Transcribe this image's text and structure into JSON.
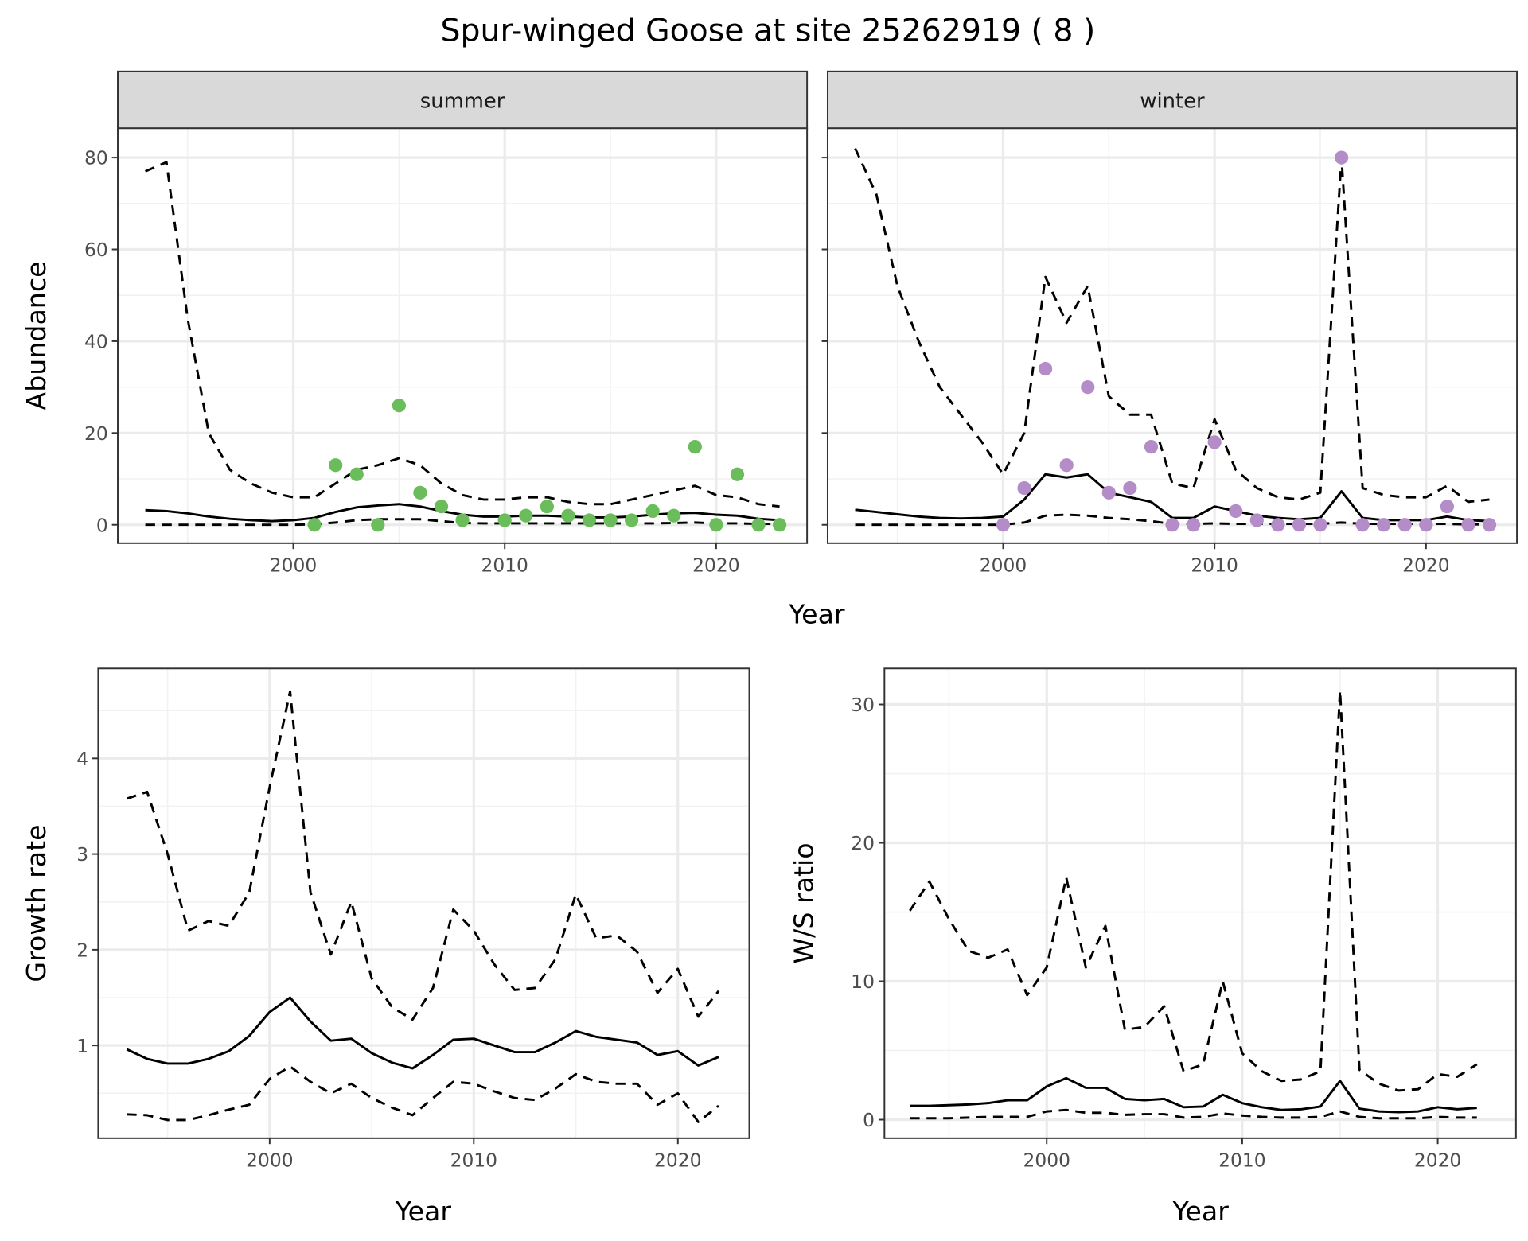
{
  "title": "Spur-winged Goose at site 25262919 ( 8 )",
  "top_xlabel": "Year",
  "chart_data": [
    {
      "id": "summer",
      "type": "line",
      "facet_label": "summer",
      "ylabel": "Abundance",
      "xlabel": "",
      "xlim": [
        1991.7,
        2024.3
      ],
      "ylim": [
        -4,
        86.4
      ],
      "xticks": [
        2000,
        2010,
        2020
      ],
      "xminor": [
        1995,
        2005,
        2015
      ],
      "yticks": [
        0,
        20,
        40,
        60,
        80
      ],
      "yminor": [
        10,
        30,
        50,
        70
      ],
      "show_ytick_labels": true,
      "grid": true,
      "x": [
        1993,
        1994,
        1995,
        1996,
        1997,
        1998,
        1999,
        2000,
        2001,
        2002,
        2003,
        2004,
        2005,
        2006,
        2007,
        2008,
        2009,
        2010,
        2011,
        2012,
        2013,
        2014,
        2015,
        2016,
        2017,
        2018,
        2019,
        2020,
        2021,
        2022,
        2023
      ],
      "series": [
        {
          "style": "dashed",
          "values": [
            77,
            79,
            45,
            20,
            12,
            9,
            7,
            6,
            6,
            9,
            12,
            13,
            14.5,
            13,
            9,
            6.5,
            5.5,
            5.5,
            6,
            6,
            5,
            4.5,
            4.5,
            5.5,
            6.5,
            7.5,
            8.5,
            6.5,
            6,
            4.5,
            4
          ]
        },
        {
          "style": "solid",
          "values": [
            3.2,
            3,
            2.5,
            1.8,
            1.3,
            1,
            0.8,
            1,
            1.5,
            2.8,
            3.8,
            4.2,
            4.5,
            4,
            3,
            2.2,
            1.8,
            1.8,
            2,
            2,
            1.8,
            1.6,
            1.6,
            1.8,
            2.2,
            2.5,
            2.6,
            2.2,
            2,
            1.3,
            1
          ]
        },
        {
          "style": "dashed",
          "values": [
            0,
            0,
            0,
            0,
            0,
            0,
            0,
            0,
            0.1,
            0.5,
            1,
            1.2,
            1.2,
            1.2,
            0.8,
            0.4,
            0.3,
            0.3,
            0.3,
            0.3,
            0.3,
            0.3,
            0.3,
            0.3,
            0.3,
            0.4,
            0.5,
            0.3,
            0.3,
            0.2,
            0.2
          ]
        }
      ],
      "points": {
        "color": "#6abd5a",
        "x": [
          2001,
          2002,
          2003,
          2004,
          2005,
          2006,
          2007,
          2008,
          2010,
          2011,
          2012,
          2013,
          2014,
          2015,
          2016,
          2017,
          2018,
          2019,
          2020,
          2021,
          2022,
          2023
        ],
        "y": [
          0,
          13,
          11,
          0,
          26,
          7,
          4,
          1,
          1,
          2,
          4,
          2,
          1,
          1,
          1,
          3,
          2,
          17,
          0,
          11,
          0,
          0
        ]
      }
    },
    {
      "id": "winter",
      "type": "line",
      "facet_label": "winter",
      "ylabel": "",
      "xlabel": "",
      "xlim": [
        1991.7,
        2024.3
      ],
      "ylim": [
        -4,
        86.4
      ],
      "xticks": [
        2000,
        2010,
        2020
      ],
      "xminor": [
        1995,
        2005,
        2015
      ],
      "yticks": [
        0,
        20,
        40,
        60,
        80
      ],
      "yminor": [
        10,
        30,
        50,
        70
      ],
      "show_ytick_labels": false,
      "grid": true,
      "x": [
        1993,
        1994,
        1995,
        1996,
        1997,
        1998,
        1999,
        2000,
        2001,
        2002,
        2003,
        2004,
        2005,
        2006,
        2007,
        2008,
        2009,
        2010,
        2011,
        2012,
        2013,
        2014,
        2015,
        2016,
        2017,
        2018,
        2019,
        2020,
        2021,
        2022,
        2023
      ],
      "series": [
        {
          "style": "dashed",
          "values": [
            82,
            72,
            52,
            40,
            30,
            24,
            18,
            11,
            20,
            54,
            44,
            52,
            28,
            24,
            24,
            9,
            8,
            23,
            12,
            8,
            6,
            5.5,
            7,
            80,
            8,
            6.5,
            6,
            6,
            8.5,
            5,
            5.5
          ]
        },
        {
          "style": "solid",
          "values": [
            3.3,
            2.8,
            2.3,
            1.8,
            1.5,
            1.4,
            1.5,
            1.8,
            5.5,
            11,
            10.3,
            11,
            7,
            6,
            5,
            1.5,
            1.5,
            4,
            3,
            2,
            1.5,
            1.2,
            1.5,
            7.3,
            1.5,
            1,
            1,
            1,
            1.8,
            1,
            0.8
          ]
        },
        {
          "style": "dashed",
          "values": [
            0,
            0,
            0,
            0,
            0,
            0,
            0,
            0,
            0.5,
            2,
            2.2,
            2,
            1.5,
            1.2,
            0.8,
            0.2,
            0.2,
            0.3,
            0.2,
            0.2,
            0.2,
            0.2,
            0.2,
            0.5,
            0.2,
            0.2,
            0.2,
            0.2,
            0.2,
            0.1,
            0.1
          ]
        }
      ],
      "points": {
        "color": "#b48dc8",
        "x": [
          2000,
          2001,
          2002,
          2003,
          2004,
          2005,
          2006,
          2007,
          2008,
          2009,
          2010,
          2011,
          2012,
          2013,
          2014,
          2015,
          2016,
          2017,
          2018,
          2019,
          2020,
          2021,
          2022,
          2023
        ],
        "y": [
          0,
          8,
          34,
          13,
          30,
          7,
          8,
          17,
          0,
          0,
          18,
          3,
          1,
          0,
          0,
          0,
          80,
          0,
          0,
          0,
          0,
          4,
          0,
          0
        ]
      }
    },
    {
      "id": "growth",
      "type": "line",
      "facet_label": "",
      "ylabel": "Growth rate",
      "xlabel": "Year",
      "xlim": [
        1991.6,
        2023.5
      ],
      "ylim": [
        0.03,
        4.94
      ],
      "xticks": [
        2000,
        2010,
        2020
      ],
      "xminor": [
        1995,
        2005,
        2015
      ],
      "yticks": [
        1,
        2,
        3,
        4
      ],
      "yminor": [
        0.5,
        1.5,
        2.5,
        3.5,
        4.5
      ],
      "show_ytick_labels": true,
      "grid": true,
      "x": [
        1993,
        1994,
        1995,
        1996,
        1997,
        1998,
        1999,
        2000,
        2001,
        2002,
        2003,
        2004,
        2005,
        2006,
        2007,
        2008,
        2009,
        2010,
        2011,
        2012,
        2013,
        2014,
        2015,
        2016,
        2017,
        2018,
        2019,
        2020,
        2021,
        2022
      ],
      "series": [
        {
          "style": "dashed",
          "values": [
            3.58,
            3.65,
            3.0,
            2.2,
            2.3,
            2.25,
            2.6,
            3.7,
            4.7,
            2.6,
            1.95,
            2.5,
            1.7,
            1.4,
            1.27,
            1.6,
            2.42,
            2.2,
            1.85,
            1.58,
            1.6,
            1.9,
            2.58,
            2.12,
            2.15,
            1.98,
            1.55,
            1.8,
            1.3,
            1.57
          ]
        },
        {
          "style": "solid",
          "values": [
            0.96,
            0.86,
            0.81,
            0.81,
            0.86,
            0.94,
            1.1,
            1.35,
            1.5,
            1.25,
            1.05,
            1.07,
            0.92,
            0.82,
            0.76,
            0.9,
            1.06,
            1.07,
            1.0,
            0.93,
            0.93,
            1.03,
            1.15,
            1.09,
            1.06,
            1.03,
            0.9,
            0.94,
            0.79,
            0.88
          ]
        },
        {
          "style": "dashed",
          "values": [
            0.28,
            0.27,
            0.22,
            0.22,
            0.27,
            0.33,
            0.38,
            0.65,
            0.78,
            0.62,
            0.5,
            0.6,
            0.45,
            0.35,
            0.27,
            0.45,
            0.62,
            0.6,
            0.52,
            0.45,
            0.43,
            0.55,
            0.7,
            0.62,
            0.6,
            0.6,
            0.38,
            0.5,
            0.2,
            0.37
          ]
        }
      ]
    },
    {
      "id": "ws",
      "type": "line",
      "facet_label": "",
      "ylabel": "W/S ratio",
      "xlabel": "Year",
      "xlim": [
        1991.7,
        2024.0
      ],
      "ylim": [
        -1.34,
        32.6
      ],
      "xticks": [
        2000,
        2010,
        2020
      ],
      "xminor": [
        1995,
        2005,
        2015
      ],
      "yticks": [
        0,
        10,
        20,
        30
      ],
      "yminor": [
        5,
        15,
        25
      ],
      "show_ytick_labels": true,
      "grid": true,
      "x": [
        1993,
        1994,
        1995,
        1996,
        1997,
        1998,
        1999,
        2000,
        2001,
        2002,
        2003,
        2004,
        2005,
        2006,
        2007,
        2008,
        2009,
        2010,
        2011,
        2012,
        2013,
        2014,
        2015,
        2016,
        2017,
        2018,
        2019,
        2020,
        2021,
        2022
      ],
      "series": [
        {
          "style": "dashed",
          "values": [
            15.1,
            17.2,
            14.5,
            12.2,
            11.7,
            12.3,
            9,
            11,
            17.5,
            11,
            14,
            6.5,
            6.7,
            8.2,
            3.5,
            4,
            10,
            4.8,
            3.5,
            2.8,
            2.9,
            3.5,
            31,
            3.6,
            2.6,
            2.1,
            2.2,
            3.3,
            3.1,
            4
          ]
        },
        {
          "style": "solid",
          "values": [
            1,
            1,
            1.05,
            1.1,
            1.2,
            1.4,
            1.4,
            2.4,
            3,
            2.3,
            2.3,
            1.5,
            1.4,
            1.5,
            0.9,
            0.95,
            1.8,
            1.2,
            0.9,
            0.7,
            0.75,
            0.95,
            2.8,
            0.8,
            0.6,
            0.55,
            0.6,
            0.9,
            0.75,
            0.85
          ]
        },
        {
          "style": "dashed",
          "values": [
            0.1,
            0.1,
            0.1,
            0.15,
            0.2,
            0.2,
            0.2,
            0.6,
            0.7,
            0.5,
            0.5,
            0.35,
            0.4,
            0.4,
            0.15,
            0.2,
            0.45,
            0.3,
            0.2,
            0.15,
            0.15,
            0.2,
            0.6,
            0.2,
            0.1,
            0.1,
            0.1,
            0.2,
            0.15,
            0.15
          ]
        }
      ]
    }
  ]
}
